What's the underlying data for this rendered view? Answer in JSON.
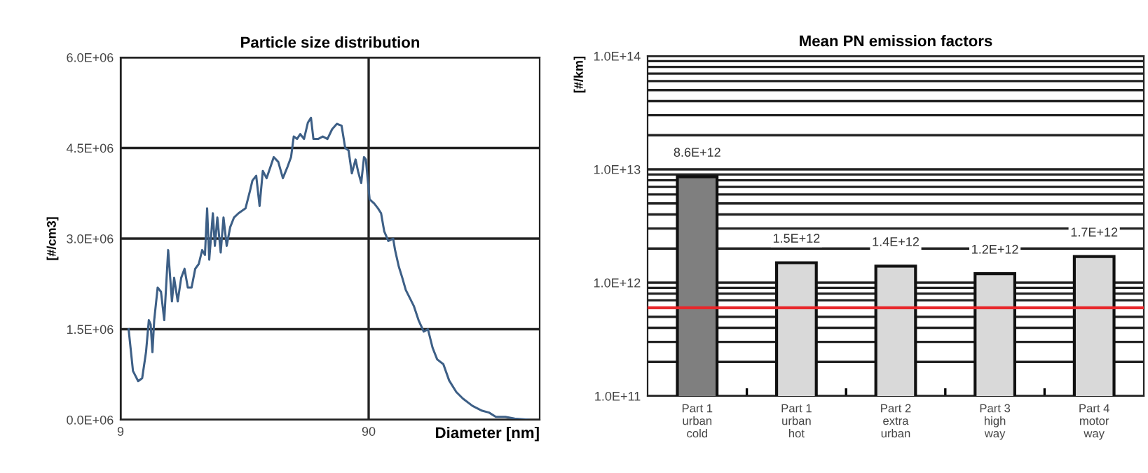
{
  "chart_data": [
    {
      "type": "line",
      "title": "Particle size distribution",
      "xlabel": "Diameter [nm]",
      "ylabel": "[#/cm3]",
      "log": "x",
      "grid": true,
      "marker": "none",
      "line_style": "solid",
      "xlim": [
        9,
        440
      ],
      "xticks": [
        9,
        90
      ],
      "ylim": [
        0,
        6000000
      ],
      "yticks": [
        {
          "value": 0,
          "label": "0.0E+06"
        },
        {
          "value": 1500000,
          "label": "1.5E+06"
        },
        {
          "value": 3000000,
          "label": "3.0E+06"
        },
        {
          "value": 4500000,
          "label": "4.5E+06"
        },
        {
          "value": 6000000,
          "label": "6.0E+06"
        }
      ],
      "series": [
        {
          "color": "#3d5f86",
          "x": [
            9.7,
            10.1,
            10.6,
            11.0,
            11.4,
            11.7,
            11.9,
            12.1,
            12.3,
            12.7,
            13.1,
            13.5,
            14.0,
            14.5,
            14.8,
            15.3,
            15.8,
            16.3,
            16.8,
            17.4,
            18.0,
            18.6,
            19.2,
            19.7,
            20.1,
            20.5,
            21.2,
            21.6,
            22.1,
            22.8,
            23.4,
            24.1,
            24.9,
            25.8,
            26.9,
            28.7,
            30.0,
            30.6,
            31.7,
            32.7,
            33.7,
            34.9,
            36.2,
            37.3,
            38.9,
            40.6,
            42.4,
            43.8,
            44.9,
            46.3,
            47.7,
            49.4,
            51.2,
            52.7,
            53.9,
            56.3,
            58.8,
            61.4,
            64.1,
            67.0,
            70.0,
            72.4,
            74.7,
            77.0,
            79.7,
            81.5,
            84.0,
            86.2,
            87.7,
            90.8,
            94.8,
            98.2,
            101,
            104,
            108,
            113,
            115,
            119,
            123,
            127,
            131,
            137,
            143,
            150,
            156,
            163,
            170,
            180,
            190,
            203,
            216,
            236,
            258,
            275,
            293,
            320,
            349,
            398
          ],
          "values": [
            1500000.0,
            810000.0,
            640000.0,
            690000.0,
            1120000.0,
            1650000.0,
            1580000.0,
            1120000.0,
            1650000.0,
            2190000.0,
            2120000.0,
            1650000.0,
            2810000.0,
            1960000.0,
            2350000.0,
            1960000.0,
            2350000.0,
            2500000.0,
            2190000.0,
            2190000.0,
            2500000.0,
            2580000.0,
            2810000.0,
            2730000.0,
            3500000.0,
            2650000.0,
            3420000.0,
            2880000.0,
            3350000.0,
            2770000.0,
            3350000.0,
            2880000.0,
            3190000.0,
            3350000.0,
            3420000.0,
            3500000.0,
            3810000.0,
            3960000.0,
            4040000.0,
            3540000.0,
            4120000.0,
            4000000.0,
            4190000.0,
            4350000.0,
            4270000.0,
            4000000.0,
            4190000.0,
            4350000.0,
            4690000.0,
            4650000.0,
            4730000.0,
            4650000.0,
            4920000.0,
            5000000.0,
            4650000.0,
            4650000.0,
            4690000.0,
            4650000.0,
            4810000.0,
            4900000.0,
            4870000.0,
            4500000.0,
            4460000.0,
            4080000.0,
            4310000.0,
            4120000.0,
            3920000.0,
            4350000.0,
            4310000.0,
            3650000.0,
            3580000.0,
            3500000.0,
            3420000.0,
            3120000.0,
            2960000.0,
            3000000.0,
            2810000.0,
            2540000.0,
            2350000.0,
            2150000.0,
            2040000.0,
            1880000.0,
            1650000.0,
            1460000.0,
            1500000.0,
            1190000.0,
            1000000.0,
            920000.0,
            650000.0,
            460000.0,
            350000.0,
            230000.0,
            150000.0,
            120000.0,
            50000.0,
            50000.0,
            20000.0,
            0.0
          ]
        }
      ]
    },
    {
      "type": "bar",
      "title": "Mean PN emission factors",
      "ylabel": "[#/km]",
      "log": "y",
      "grid": "y",
      "categories": [
        "Part 1\nurban\ncold",
        "Part 1\nurban\nhot",
        "Part 2\nextra\nurban",
        "Part 3\nhigh\nway",
        "Part 4\nmotor\nway"
      ],
      "values": [
        8600000000000.0,
        1500000000000.0,
        1400000000000.0,
        1200000000000.0,
        1700000000000.0
      ],
      "value_labels": [
        "8.6E+12",
        "1.5E+12",
        "1.4E+12",
        "1.2E+12",
        "1.7E+12"
      ],
      "colors": [
        "#7f7f7f",
        "#d9d9d9",
        "#d9d9d9",
        "#d9d9d9",
        "#d9d9d9"
      ],
      "ylim": [
        100000000000.0,
        100000000000000.0
      ],
      "yticks": [
        {
          "value": 100000000000.0,
          "label": "1.0E+11"
        },
        {
          "value": 1000000000000.0,
          "label": "1.0E+12"
        },
        {
          "value": 10000000000000.0,
          "label": "1.0E+13"
        },
        {
          "value": 100000000000000.0,
          "label": "1.0E+14"
        }
      ],
      "ref_lines": [
        {
          "axis": "y",
          "value": 600000000000.0,
          "color": "#e8262a"
        }
      ]
    }
  ]
}
